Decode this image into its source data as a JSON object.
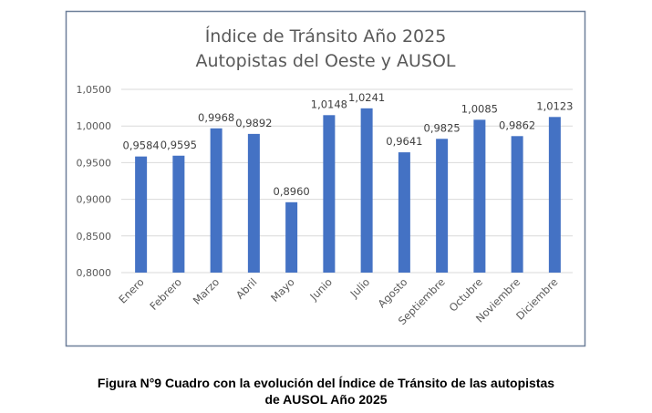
{
  "chart_data": {
    "type": "bar",
    "title": [
      "Índice de Tránsito Año 2025",
      "Autopistas del Oeste y AUSOL"
    ],
    "xlabel": "",
    "ylabel": "",
    "ylim": [
      0.8,
      1.05
    ],
    "yticks": [
      "0,8000",
      "0,8500",
      "0,9000",
      "0,9500",
      "1,0000",
      "1,0500"
    ],
    "ytick_values": [
      0.8,
      0.85,
      0.9,
      0.95,
      1.0,
      1.05
    ],
    "grid": true,
    "categories": [
      "Enero",
      "Febrero",
      "Marzo",
      "Abril",
      "Mayo",
      "Junio",
      "Julio",
      "Agosto",
      "Septiembre",
      "Octubre",
      "Noviembre",
      "Diciembre"
    ],
    "values": [
      0.9584,
      0.9595,
      0.9968,
      0.9892,
      0.896,
      1.0148,
      1.0241,
      0.9641,
      0.9825,
      1.0085,
      0.9862,
      1.0123
    ],
    "data_labels": [
      "0,9584",
      "0,9595",
      "0,9968",
      "0,9892",
      "0,8960",
      "1,0148",
      "1,0241",
      "0,9641",
      "0,9825",
      "1,0085",
      "0,9862",
      "1,0123"
    ],
    "bar_color": "#4472C4"
  },
  "caption": [
    "Figura N°9 Cuadro con la evolución del Índice de Tránsito de las autopistas",
    "de AUSOL Año 2025"
  ]
}
